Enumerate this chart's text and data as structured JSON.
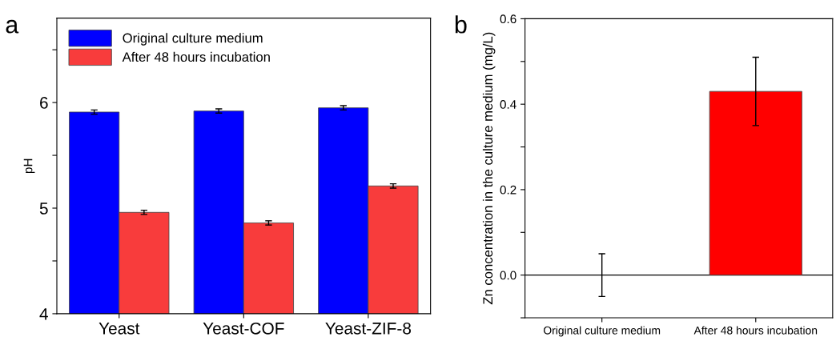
{
  "chart_data": [
    {
      "type": "bar",
      "title": "a",
      "ylabel": "pH",
      "categories": [
        "Yeast",
        "Yeast-COF",
        "Yeast-ZIF-8"
      ],
      "series": [
        {
          "name": "Original culture medium",
          "color": "#0000ff",
          "values": [
            5.91,
            5.92,
            5.95
          ],
          "errors": [
            0.02,
            0.02,
            0.02
          ]
        },
        {
          "name": "After 48 hours incubation",
          "color": "#f83c3c",
          "values": [
            4.96,
            4.86,
            5.21
          ],
          "errors": [
            0.02,
            0.02,
            0.02
          ]
        }
      ],
      "ylim": [
        4,
        6.8
      ],
      "yticks": [
        4,
        {
          "value": 4.5,
          "label": null
        },
        5,
        {
          "value": 5.5,
          "label": null
        },
        6,
        {
          "value": 6.5,
          "label": null
        }
      ],
      "legend": "top left",
      "grid": false
    },
    {
      "type": "bar",
      "title": "b",
      "ylabel": "Zn concentration in the culture medium (mg/L)",
      "categories": [
        "Original culture medium",
        "After 48 hours incubation"
      ],
      "series": [
        {
          "color": "#ff0000",
          "values": [
            0,
            0.43
          ],
          "errors": [
            0.05,
            0.08
          ]
        }
      ],
      "ylim": [
        -0.1,
        0.6
      ],
      "yticks": [
        {
          "value": -0.1,
          "label": null
        },
        {
          "value": 0.0,
          "label": "0.0"
        },
        {
          "value": 0.1,
          "label": null
        },
        0.2,
        {
          "value": 0.3,
          "label": null
        },
        0.4,
        {
          "value": 0.5,
          "label": null
        },
        0.6
      ],
      "ref_lines": [
        {
          "axis": "y",
          "value": 0
        }
      ],
      "grid": false
    }
  ]
}
